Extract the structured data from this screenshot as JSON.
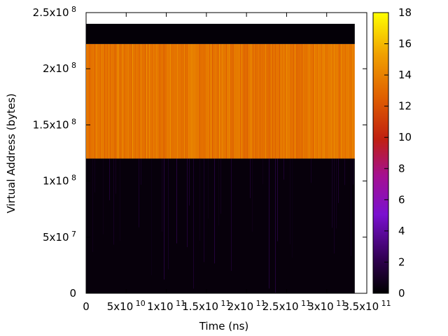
{
  "chart_data": {
    "type": "heatmap",
    "title": "",
    "xlabel": "Time (ns)",
    "ylabel": "Virtual Address (bytes)",
    "xlim": [
      0,
      350000000000
    ],
    "ylim": [
      0,
      250000000
    ],
    "data_x_range": [
      0,
      335000000000
    ],
    "data_y_range": [
      0,
      240000000
    ],
    "x_ticks": [
      {
        "value": 0,
        "mantissa": "0",
        "exp": ""
      },
      {
        "value": 50000000000,
        "mantissa": "5x10",
        "exp": "10"
      },
      {
        "value": 100000000000,
        "mantissa": "1x10",
        "exp": "11"
      },
      {
        "value": 150000000000,
        "mantissa": "1.5x10",
        "exp": "11"
      },
      {
        "value": 200000000000,
        "mantissa": "2x10",
        "exp": "11"
      },
      {
        "value": 250000000000,
        "mantissa": "2.5x10",
        "exp": "11"
      },
      {
        "value": 300000000000,
        "mantissa": "3x10",
        "exp": "11"
      },
      {
        "value": 350000000000,
        "mantissa": "3.5x10",
        "exp": "11"
      }
    ],
    "y_ticks": [
      {
        "value": 0,
        "mantissa": "0",
        "exp": ""
      },
      {
        "value": 50000000,
        "mantissa": "5x10",
        "exp": "7"
      },
      {
        "value": 100000000,
        "mantissa": "1x10",
        "exp": "8"
      },
      {
        "value": 150000000,
        "mantissa": "1.5x10",
        "exp": "8"
      },
      {
        "value": 200000000,
        "mantissa": "2x10",
        "exp": "8"
      },
      {
        "value": 250000000,
        "mantissa": "2.5x10",
        "exp": "8"
      }
    ],
    "colorbar": {
      "range": [
        0,
        18
      ],
      "ticks": [
        "0",
        "2",
        "4",
        "6",
        "8",
        "10",
        "12",
        "14",
        "16",
        "18"
      ],
      "palette": "black-purple-red-orange-yellow"
    },
    "bands": [
      {
        "y_from": 0,
        "y_to": 120000000,
        "value": 0.3
      },
      {
        "y_from": 120000000,
        "y_to": 222000000,
        "value": 13.5
      },
      {
        "y_from": 222000000,
        "y_to": 240000000,
        "value": 0.2
      }
    ]
  }
}
